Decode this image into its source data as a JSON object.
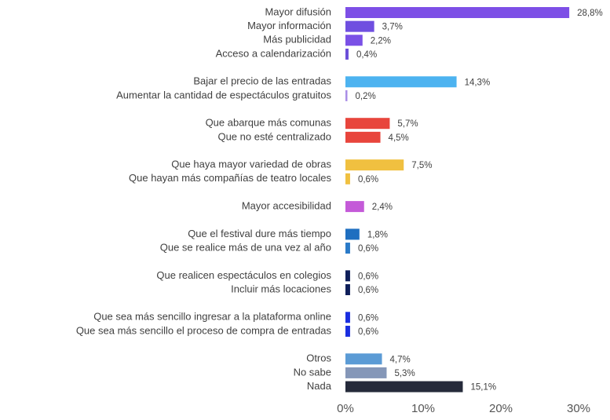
{
  "chart_data": {
    "type": "bar",
    "orientation": "horizontal",
    "categories": [
      "Mayor difusión",
      "Mayor información",
      "Más publicidad",
      "Acceso a calendarización",
      "Bajar el precio de las entradas",
      "Aumentar la cantidad de espectáculos gratuitos",
      "Que abarque más comunas",
      "Que no esté centralizado",
      "Que haya mayor variedad de obras",
      "Que hayan más compañías de teatro locales",
      "Mayor accesibilidad",
      "Que el festival dure más tiempo",
      "Que se realice más de una vez al año",
      "Que realicen espectáculos en colegios",
      "Incluir más locaciones",
      "Que sea más sencillo ingresar a la plataforma online",
      "Que sea más sencillo el proceso de compra de entradas",
      "Otros",
      "No sabe",
      "Nada"
    ],
    "values": [
      28.8,
      3.7,
      2.2,
      0.4,
      14.3,
      0.2,
      5.7,
      4.5,
      7.5,
      0.6,
      2.4,
      1.8,
      0.6,
      0.6,
      0.6,
      0.6,
      0.6,
      4.7,
      5.3,
      15.1
    ],
    "value_labels": [
      "28,8%",
      "3,7%",
      "2,2%",
      "0,4%",
      "14,3%",
      "0,2%",
      "5,7%",
      "4,5%",
      "7,5%",
      "0,6%",
      "2,4%",
      "1,8%",
      "0,6%",
      "0,6%",
      "0,6%",
      "0,6%",
      "0,6%",
      "4,7%",
      "5,3%",
      "15,1%"
    ],
    "colors": [
      "#7d4fe6",
      "#6f4fe0",
      "#7a50e6",
      "#6b4fd8",
      "#4db3f0",
      "#a98ee6",
      "#e8453c",
      "#e8453c",
      "#f0c040",
      "#f0c040",
      "#c45ad8",
      "#1f6fc0",
      "#2a7ac8",
      "#0f1f5a",
      "#0f1f5a",
      "#1a2ee0",
      "#1a2ee0",
      "#5b9bd5",
      "#8597b8",
      "#252a3a"
    ],
    "xlim": [
      0,
      30
    ],
    "xticks": [
      {
        "value": 0,
        "label": "0%"
      },
      {
        "value": 10,
        "label": "10%"
      },
      {
        "value": 20,
        "label": "20%"
      },
      {
        "value": 30,
        "label": "30%"
      }
    ]
  }
}
